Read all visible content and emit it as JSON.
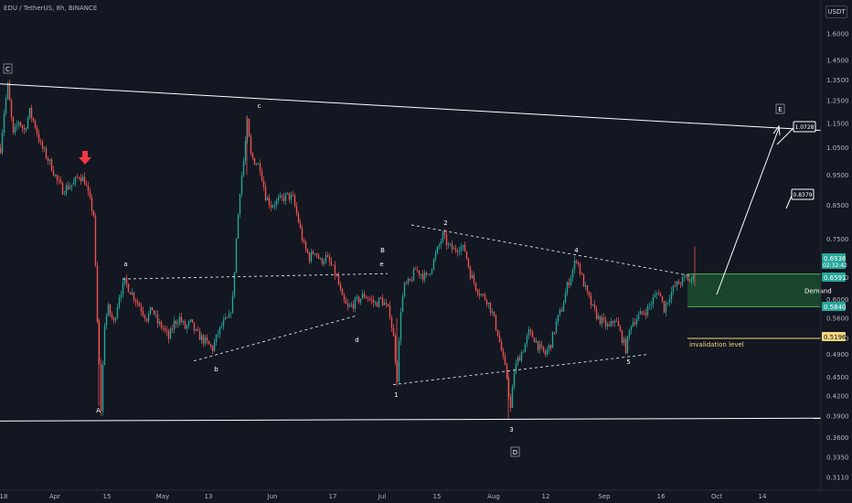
{
  "header": {
    "symbol": "EDU / TetherUS, 8h, BINANCE",
    "currency": "USDT"
  },
  "chart_data": {
    "type": "candlestick",
    "title": "EDU / TetherUS, 8h, BINANCE",
    "ylabel": "USDT",
    "y_scale": "log",
    "ylim": [
      0.3,
      1.8
    ],
    "y_ticks": [
      "1.6000",
      "1.4500",
      "1.3500",
      "1.2500",
      "1.1500",
      "1.0500",
      "0.9500",
      "0.8500",
      "0.7500",
      "0.6500",
      "0.6000",
      "0.5600",
      "0.5200",
      "0.4900",
      "0.4500",
      "0.4200",
      "0.3900",
      "0.3600",
      "0.3350",
      "0.3110"
    ],
    "x_ticks": [
      "18",
      "Apr",
      "15",
      "May",
      "13",
      "Jun",
      "17",
      "Jul",
      "15",
      "Aug",
      "12",
      "Sep",
      "16",
      "Oct",
      "14"
    ],
    "price_labels": [
      {
        "text": "0.6936",
        "sub": "02:32:42",
        "color": "#26a69a"
      },
      {
        "text": "0.6591",
        "color": "#26a69a"
      },
      {
        "text": "0.5840",
        "color": "#26a69a"
      },
      {
        "text": "0.5196",
        "color": "#f5d77b"
      }
    ],
    "target_labels": [
      "1.0728",
      "0.8379"
    ],
    "wave_labels": {
      "boxed": [
        "C",
        "D",
        "E"
      ],
      "letters": [
        "A",
        "a",
        "b",
        "c",
        "d",
        "e",
        "B"
      ],
      "numbers": [
        "1",
        "2",
        "3",
        "4",
        "5"
      ]
    },
    "annotations": {
      "demand_zone": "Demand",
      "invalidation": "invalidation level",
      "demand_range": [
        0.584,
        0.659
      ],
      "invalidation_price": 0.5196
    },
    "colors": {
      "background": "#131722",
      "up": "#26a69a",
      "down": "#ef5350",
      "demand_fill": "#1e5631",
      "invalidation": "#f5d77b",
      "lines": "#ffffff",
      "arrow": "#f23645"
    },
    "price_path": [
      [
        0,
        1.05
      ],
      [
        4,
        1.2
      ],
      [
        8,
        1.32
      ],
      [
        14,
        1.1
      ],
      [
        20,
        1.16
      ],
      [
        26,
        1.12
      ],
      [
        32,
        1.2
      ],
      [
        38,
        1.14
      ],
      [
        44,
        1.06
      ],
      [
        50,
        1.02
      ],
      [
        56,
        0.98
      ],
      [
        62,
        0.93
      ],
      [
        68,
        0.9
      ],
      [
        74,
        0.91
      ],
      [
        80,
        0.92
      ],
      [
        86,
        0.95
      ],
      [
        92,
        0.93
      ],
      [
        98,
        0.86
      ],
      [
        102,
        0.82
      ],
      [
        106,
        0.55
      ],
      [
        110,
        0.4
      ],
      [
        114,
        0.55
      ],
      [
        118,
        0.58
      ],
      [
        124,
        0.55
      ],
      [
        130,
        0.61
      ],
      [
        136,
        0.64
      ],
      [
        142,
        0.62
      ],
      [
        148,
        0.6
      ],
      [
        154,
        0.58
      ],
      [
        160,
        0.56
      ],
      [
        166,
        0.58
      ],
      [
        172,
        0.55
      ],
      [
        178,
        0.54
      ],
      [
        184,
        0.52
      ],
      [
        190,
        0.55
      ],
      [
        196,
        0.56
      ],
      [
        202,
        0.54
      ],
      [
        208,
        0.55
      ],
      [
        214,
        0.53
      ],
      [
        220,
        0.52
      ],
      [
        226,
        0.51
      ],
      [
        232,
        0.5
      ],
      [
        238,
        0.53
      ],
      [
        244,
        0.55
      ],
      [
        250,
        0.56
      ],
      [
        254,
        0.6
      ],
      [
        258,
        0.75
      ],
      [
        262,
        0.9
      ],
      [
        266,
        1.0
      ],
      [
        270,
        1.15
      ],
      [
        274,
        1.02
      ],
      [
        278,
        1.0
      ],
      [
        284,
        0.98
      ],
      [
        290,
        0.88
      ],
      [
        296,
        0.85
      ],
      [
        302,
        0.86
      ],
      [
        308,
        0.87
      ],
      [
        314,
        0.88
      ],
      [
        320,
        0.87
      ],
      [
        326,
        0.8
      ],
      [
        332,
        0.73
      ],
      [
        338,
        0.7
      ],
      [
        344,
        0.72
      ],
      [
        350,
        0.69
      ],
      [
        356,
        0.7
      ],
      [
        362,
        0.68
      ],
      [
        368,
        0.65
      ],
      [
        374,
        0.6
      ],
      [
        380,
        0.58
      ],
      [
        386,
        0.59
      ],
      [
        392,
        0.6
      ],
      [
        398,
        0.61
      ],
      [
        404,
        0.6
      ],
      [
        410,
        0.59
      ],
      [
        416,
        0.6
      ],
      [
        420,
        0.59
      ],
      [
        426,
        0.57
      ],
      [
        430,
        0.52
      ],
      [
        434,
        0.45
      ],
      [
        438,
        0.58
      ],
      [
        442,
        0.63
      ],
      [
        448,
        0.64
      ],
      [
        454,
        0.67
      ],
      [
        460,
        0.66
      ],
      [
        466,
        0.65
      ],
      [
        472,
        0.68
      ],
      [
        478,
        0.72
      ],
      [
        484,
        0.76
      ],
      [
        490,
        0.73
      ],
      [
        496,
        0.72
      ],
      [
        502,
        0.73
      ],
      [
        508,
        0.72
      ],
      [
        514,
        0.66
      ],
      [
        520,
        0.63
      ],
      [
        526,
        0.61
      ],
      [
        532,
        0.6
      ],
      [
        538,
        0.57
      ],
      [
        544,
        0.53
      ],
      [
        550,
        0.48
      ],
      [
        554,
        0.45
      ],
      [
        558,
        0.4
      ],
      [
        562,
        0.46
      ],
      [
        566,
        0.48
      ],
      [
        572,
        0.5
      ],
      [
        578,
        0.53
      ],
      [
        584,
        0.52
      ],
      [
        590,
        0.5
      ],
      [
        596,
        0.49
      ],
      [
        602,
        0.51
      ],
      [
        608,
        0.55
      ],
      [
        614,
        0.58
      ],
      [
        620,
        0.63
      ],
      [
        626,
        0.67
      ],
      [
        630,
        0.7
      ],
      [
        636,
        0.65
      ],
      [
        642,
        0.61
      ],
      [
        648,
        0.58
      ],
      [
        654,
        0.56
      ],
      [
        660,
        0.55
      ],
      [
        666,
        0.54
      ],
      [
        672,
        0.56
      ],
      [
        678,
        0.53
      ],
      [
        684,
        0.5
      ],
      [
        690,
        0.55
      ],
      [
        696,
        0.56
      ],
      [
        702,
        0.57
      ],
      [
        708,
        0.58
      ],
      [
        714,
        0.6
      ],
      [
        720,
        0.62
      ],
      [
        726,
        0.58
      ],
      [
        732,
        0.61
      ],
      [
        738,
        0.63
      ],
      [
        744,
        0.64
      ],
      [
        750,
        0.65
      ],
      [
        756,
        0.64
      ],
      [
        760,
        0.69
      ]
    ]
  }
}
